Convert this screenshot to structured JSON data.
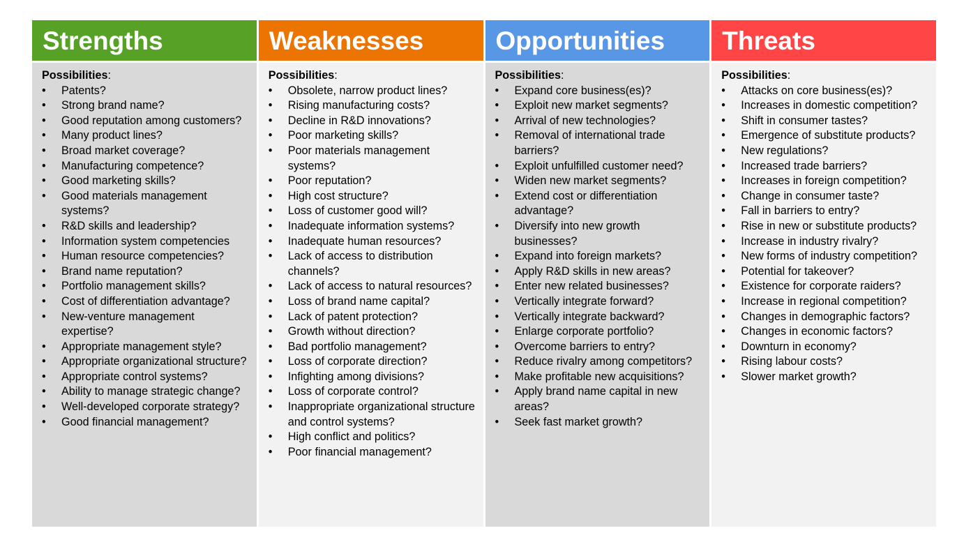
{
  "colors": {
    "strengths": "#56A126",
    "weaknesses": "#EB7500",
    "opportunities": "#5897E5",
    "threats": "#FF4545",
    "body_grey": "#D9D9D9",
    "body_light": "#F2F2F2"
  },
  "columns": [
    {
      "title": "Strengths",
      "possibilities_label": "Possibilities",
      "items": [
        "Patents?",
        "Strong brand name?",
        "Good reputation among customers?",
        "Many product lines?",
        "Broad market coverage?",
        "Manufacturing competence?",
        "Good marketing skills?",
        "Good materials management systems?",
        "R&D skills and leadership?",
        "Information system competencies",
        "Human resource competencies?",
        "Brand name reputation?",
        "Portfolio management skills?",
        "Cost of differentiation advantage?",
        "New-venture management expertise?",
        "Appropriate management style?",
        "Appropriate organizational structure?",
        "Appropriate control systems?",
        "Ability to manage strategic change?",
        "Well-developed corporate strategy?",
        "Good financial management?"
      ]
    },
    {
      "title": "Weaknesses",
      "possibilities_label": "Possibilities",
      "items": [
        "Obsolete, narrow product lines?",
        "Rising manufacturing costs?",
        "Decline in R&D innovations?",
        "Poor marketing skills?",
        "Poor materials management systems?",
        "Poor reputation?",
        "High cost structure?",
        "Loss of customer good will?",
        "Inadequate information systems?",
        "Inadequate human resources?",
        "Lack of access to distribution channels?",
        "Lack of access to natural resources?",
        "Loss of brand name capital?",
        "Lack of patent protection?",
        "Growth without direction?",
        "Bad portfolio management?",
        "Loss of corporate direction?",
        "Infighting among divisions?",
        "Loss of corporate control?",
        "Inappropriate organizational structure and control systems?",
        "High conflict and politics?",
        "Poor financial management?"
      ]
    },
    {
      "title": "Opportunities",
      "possibilities_label": "Possibilities",
      "items": [
        "Expand core business(es)?",
        "Exploit new market segments?",
        "Arrival of new technologies?",
        "Removal of international trade barriers?",
        "Exploit unfulfilled customer need?",
        "Widen new market segments?",
        "Extend cost or differentiation advantage?",
        "Diversify into new growth businesses?",
        "Expand into foreign markets?",
        "Apply R&D skills in new areas?",
        "Enter new related businesses?",
        "Vertically integrate forward?",
        "Vertically integrate backward?",
        "Enlarge corporate portfolio?",
        "Overcome barriers to entry?",
        "Reduce rivalry among competitors?",
        "Make profitable new acquisitions?",
        "Apply brand name capital in new areas?",
        "Seek fast market growth?"
      ]
    },
    {
      "title": "Threats",
      "possibilities_label": "Possibilities",
      "items": [
        "Attacks on core business(es)?",
        "Increases in domestic competition?",
        "Shift in consumer tastes?",
        "Emergence of substitute products?",
        "New regulations?",
        "Increased trade barriers?",
        "Increases in foreign competition?",
        "Change in consumer taste?",
        "Fall in barriers to entry?",
        "Rise in new or substitute products?",
        "Increase in industry rivalry?",
        "New forms of industry competition?",
        "Potential for takeover?",
        "Existence for corporate raiders?",
        "Increase in regional competition?",
        "Changes in demographic factors?",
        "Changes in economic factors?",
        "Downturn in economy?",
        "Rising labour costs?",
        "Slower market growth?"
      ]
    }
  ]
}
